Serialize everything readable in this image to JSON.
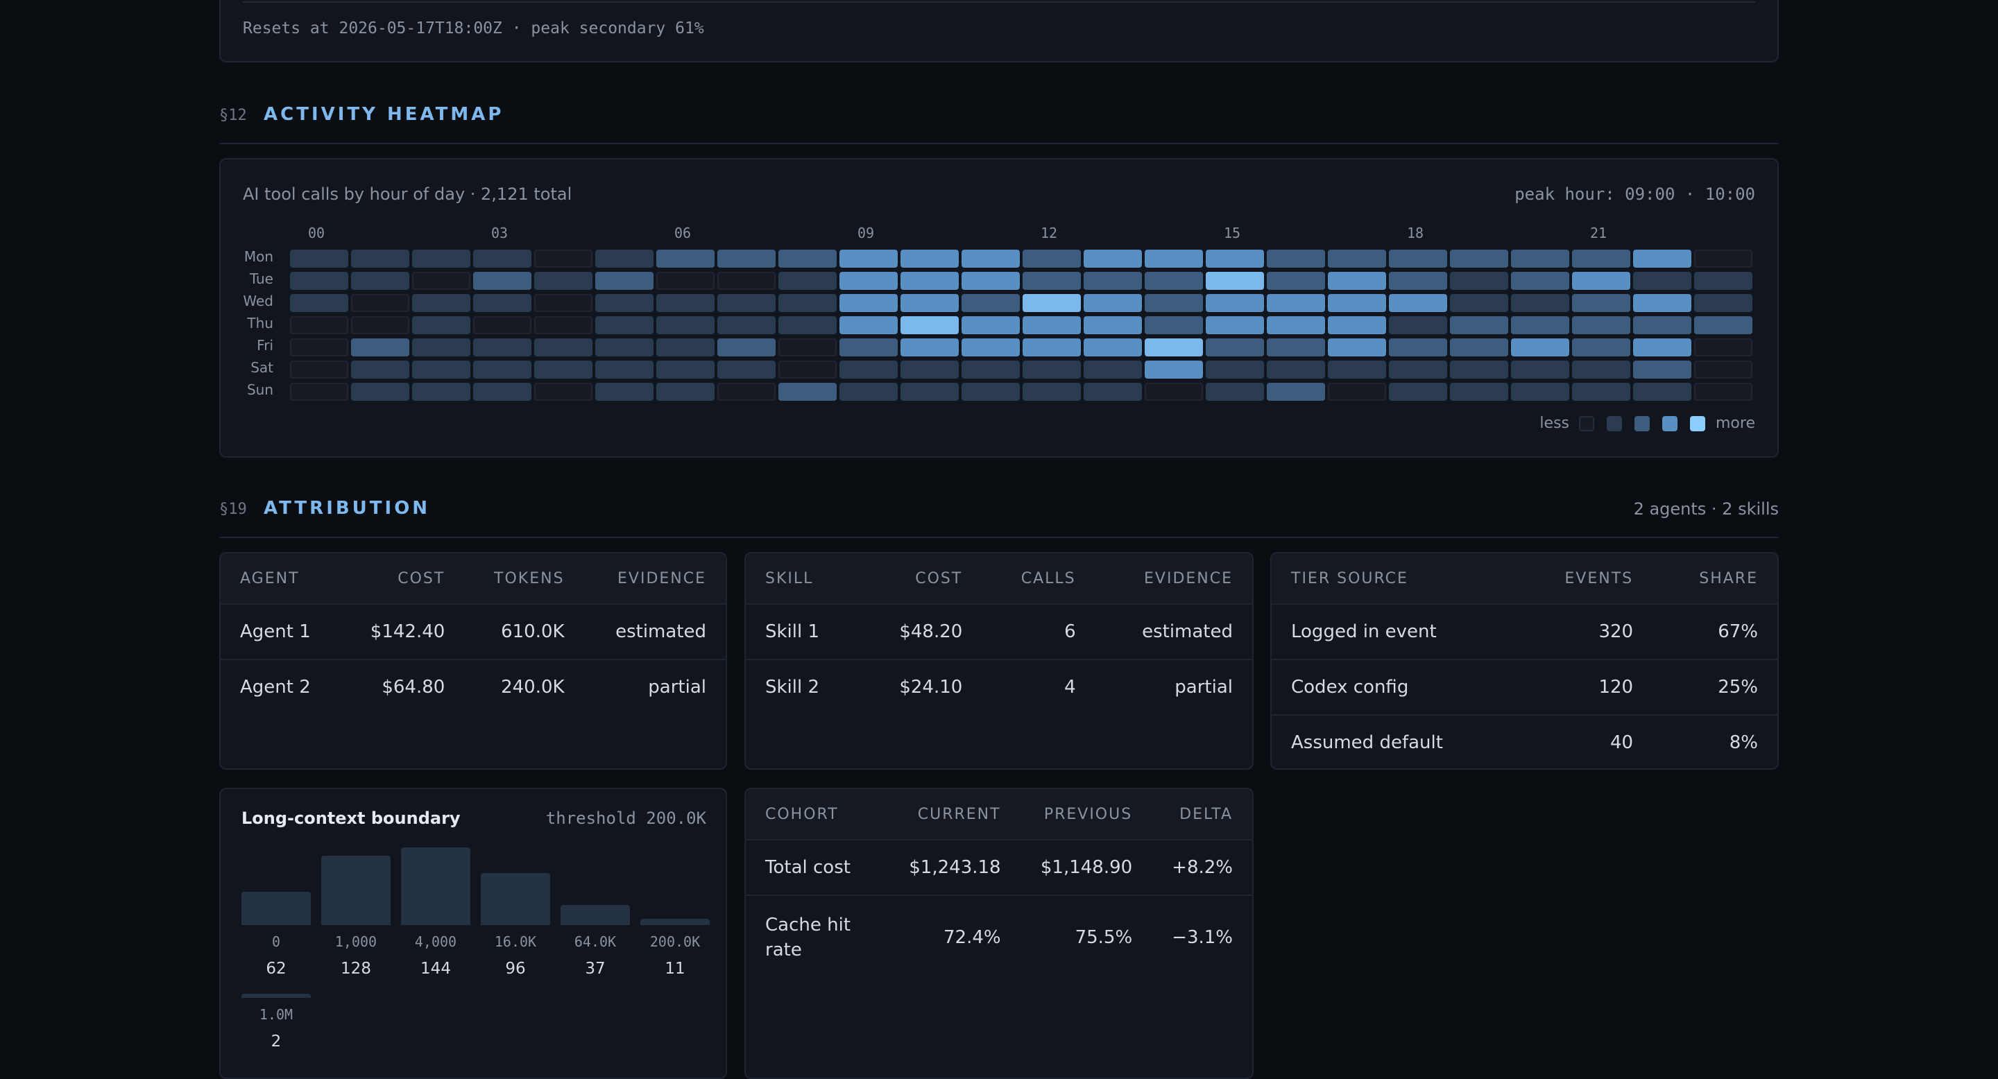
{
  "quota_footer": {
    "text": "Resets at 2026-05-17T18:00Z · peak secondary 61%"
  },
  "heatmap_section": {
    "number": "§12",
    "title": "ACTIVITY HEATMAP"
  },
  "heatmap": {
    "subtitle": "AI tool calls by hour of day · 2,121 total",
    "peak": "peak hour: 09:00 · 10:00",
    "days": [
      "Mon",
      "Tue",
      "Wed",
      "Thu",
      "Fri",
      "Sat",
      "Sun"
    ],
    "hour_labels": [
      "00",
      "03",
      "06",
      "09",
      "12",
      "15",
      "18",
      "21"
    ],
    "legend_less": "less",
    "legend_more": "more",
    "levels_colors": [
      "#151a23",
      "#2a3b52",
      "#3d5d80",
      "#5a8fc4",
      "#7ab8ee",
      "#8ccdff"
    ],
    "grid": [
      [
        1,
        1,
        1,
        1,
        0,
        1,
        2,
        2,
        2,
        3,
        3,
        3,
        2,
        3,
        3,
        3,
        2,
        2,
        2,
        2,
        2,
        2,
        3,
        0
      ],
      [
        1,
        1,
        0,
        2,
        1,
        2,
        0,
        0,
        1,
        3,
        3,
        3,
        2,
        2,
        2,
        4,
        2,
        3,
        2,
        1,
        2,
        3,
        1,
        1
      ],
      [
        1,
        0,
        1,
        1,
        0,
        1,
        1,
        1,
        1,
        3,
        3,
        2,
        4,
        3,
        2,
        3,
        3,
        3,
        3,
        1,
        1,
        2,
        3,
        1
      ],
      [
        0,
        0,
        1,
        0,
        0,
        1,
        1,
        1,
        1,
        3,
        4,
        3,
        3,
        3,
        2,
        3,
        3,
        3,
        1,
        2,
        2,
        2,
        2,
        2
      ],
      [
        0,
        2,
        1,
        1,
        1,
        1,
        1,
        2,
        0,
        2,
        3,
        3,
        3,
        3,
        4,
        2,
        2,
        3,
        2,
        2,
        3,
        2,
        3,
        0
      ],
      [
        0,
        1,
        1,
        1,
        1,
        1,
        1,
        1,
        0,
        1,
        1,
        1,
        1,
        1,
        3,
        1,
        1,
        1,
        1,
        1,
        1,
        1,
        2,
        0
      ],
      [
        0,
        1,
        1,
        1,
        0,
        1,
        1,
        0,
        2,
        1,
        1,
        1,
        1,
        1,
        0,
        1,
        2,
        0,
        1,
        1,
        1,
        1,
        1,
        0
      ]
    ]
  },
  "attribution_section": {
    "number": "§19",
    "title": "ATTRIBUTION",
    "summary": "2 agents · 2 skills"
  },
  "agent_table": {
    "headers": [
      "AGENT",
      "COST",
      "TOKENS",
      "EVIDENCE"
    ],
    "rows": [
      [
        "Agent 1",
        "$142.40",
        "610.0K",
        "estimated"
      ],
      [
        "Agent 2",
        "$64.80",
        "240.0K",
        "partial"
      ]
    ]
  },
  "skill_table": {
    "headers": [
      "SKILL",
      "COST",
      "CALLS",
      "EVIDENCE"
    ],
    "rows": [
      [
        "Skill 1",
        "$48.20",
        "6",
        "estimated"
      ],
      [
        "Skill 2",
        "$24.10",
        "4",
        "partial"
      ]
    ]
  },
  "tier_table": {
    "headers": [
      "TIER SOURCE",
      "EVENTS",
      "SHARE"
    ],
    "rows": [
      [
        "Logged in event",
        "320",
        "67%"
      ],
      [
        "Codex config",
        "120",
        "25%"
      ],
      [
        "Assumed default",
        "40",
        "8%"
      ]
    ]
  },
  "long_context": {
    "title": "Long-context boundary",
    "threshold": "threshold 200.0K",
    "chart_data": {
      "type": "bar",
      "categories": [
        "0",
        "1,000",
        "4,000",
        "16.0K",
        "64.0K",
        "200.0K",
        "1.0M"
      ],
      "values": [
        62,
        128,
        144,
        96,
        37,
        11,
        2
      ]
    }
  },
  "cohort_table": {
    "headers": [
      "COHORT",
      "CURRENT",
      "PREVIOUS",
      "DELTA"
    ],
    "rows": [
      [
        "Total cost",
        "$1,243.18",
        "$1,148.90",
        "+8.2%"
      ],
      [
        "Cache hit rate",
        "72.4%",
        "75.5%",
        "−3.1%"
      ]
    ]
  }
}
